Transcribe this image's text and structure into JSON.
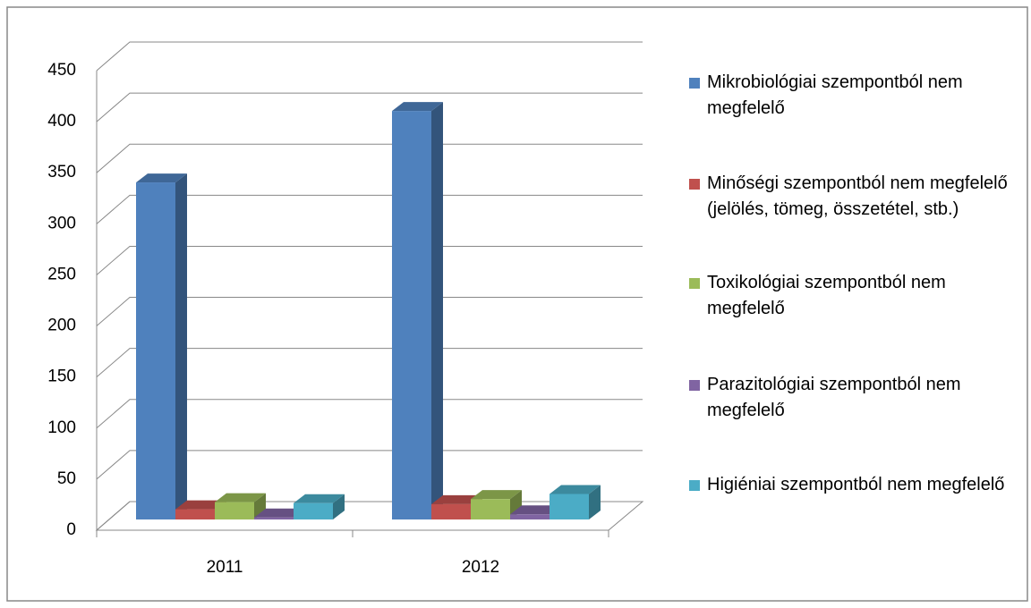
{
  "chart_data": {
    "type": "bar3d",
    "categories": [
      "2011",
      "2012"
    ],
    "series": [
      {
        "name": "Mikrobiológiai szempontból nem megfelelő",
        "color": "#4f81bd",
        "values": [
          330,
          400
        ]
      },
      {
        "name": "Minőségi szempontból nem megfelelő (jelölés, tömeg, összetétel, stb.)",
        "color": "#c0504d",
        "values": [
          10,
          15
        ]
      },
      {
        "name": "Toxikológiai szempontból nem megfelelő",
        "color": "#9bbb59",
        "values": [
          17,
          20
        ]
      },
      {
        "name": "Parazitológiai szempontból nem megfelelő",
        "color": "#8064a2",
        "values": [
          2,
          5
        ]
      },
      {
        "name": "Higiéniai szempontból nem megfelelő",
        "color": "#4bacc6",
        "values": [
          16,
          25
        ]
      }
    ],
    "ylim": [
      0,
      450
    ],
    "yticks": [
      0,
      50,
      100,
      150,
      200,
      250,
      300,
      350,
      400,
      450
    ],
    "grid": true,
    "legend": "right"
  }
}
